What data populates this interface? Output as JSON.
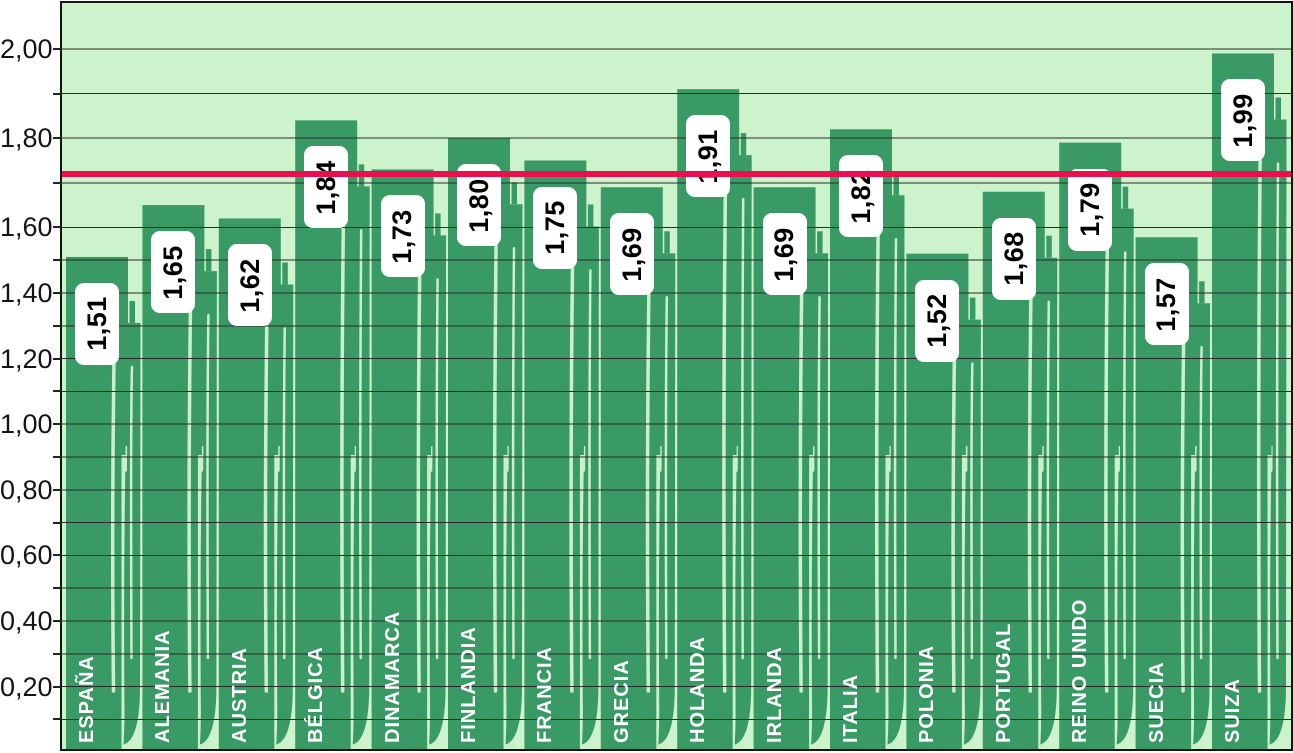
{
  "chart_data": {
    "type": "bar",
    "title": "",
    "categories": [
      "ESPAÑA",
      "ALEMANIA",
      "AUSTRIA",
      "BÉLGICA",
      "DINAMARCA",
      "FINLANDIA",
      "FRANCIA",
      "GRECIA",
      "HOLANDA",
      "IRLANDA",
      "ITALIA",
      "POLONIA",
      "PORTUGAL",
      "REINO UNIDO",
      "SUECIA",
      "SUIZA"
    ],
    "values": [
      1.51,
      1.65,
      1.62,
      1.84,
      1.73,
      1.8,
      1.75,
      1.69,
      1.91,
      1.69,
      1.82,
      1.52,
      1.68,
      1.79,
      1.57,
      1.99
    ],
    "value_labels": [
      "1,51",
      "1,65",
      "1,62",
      "1,84",
      "1,73",
      "1,80",
      "1,75",
      "1,69",
      "1,91",
      "1,69",
      "1,82",
      "1,52",
      "1,68",
      "1,79",
      "1,57",
      "1,99"
    ],
    "xlabel": "",
    "ylabel": "",
    "ylim": [
      0,
      2.1
    ],
    "ytick_labels": [
      "2,00",
      "1,80",
      "1,60",
      "1,40",
      "1,20",
      "1,00",
      "0,80",
      "0,60",
      "0,40",
      "0,20"
    ],
    "ytick_values": [
      2.0,
      1.8,
      1.6,
      1.4,
      1.2,
      1.0,
      0.8,
      0.6,
      0.4,
      0.2
    ],
    "minor_tick_step": 0.1,
    "grid": "horizontal",
    "legend": "none",
    "reference_line": {
      "value": 1.72
    }
  },
  "colors": {
    "page_background": "#ffffff",
    "plot_background": "#cdf3cd",
    "bar_fill": "#3a9a65",
    "bar_highlight": "#c9f0c9",
    "gridline": "#2b2b2b",
    "reference_line": "#ea1050",
    "value_box_bg": "#ffffff",
    "value_text": "#000000",
    "country_text": "#ffffff",
    "axis_text": "#141414",
    "plot_border": "#141414"
  }
}
